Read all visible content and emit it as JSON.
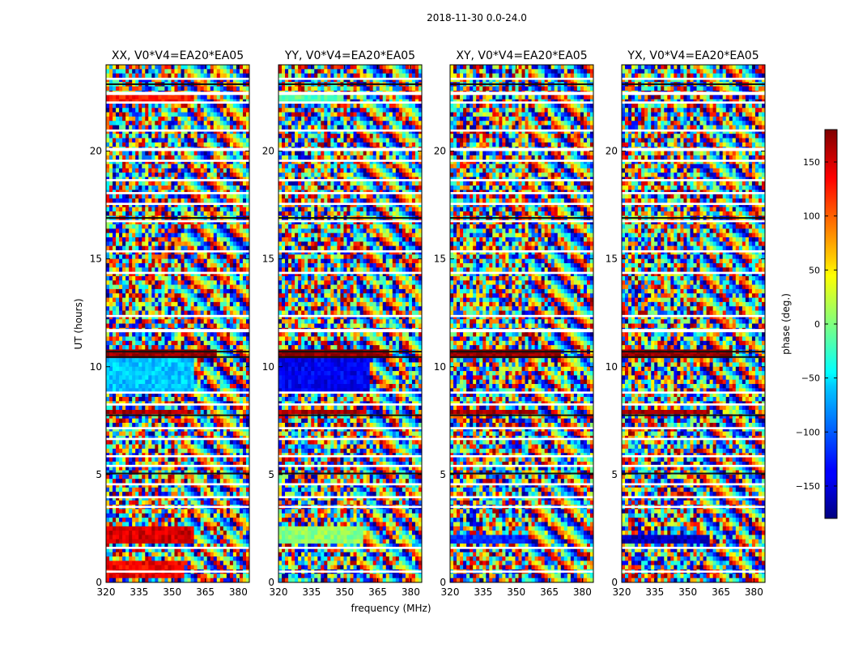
{
  "suptitle": "2018-11-30 0.0-24.0",
  "chart_data": {
    "type": "heatmap",
    "description_axis": "dynamic phase spectra per polarization",
    "xlabel": "frequency (MHz)",
    "ylabel": "UT (hours)",
    "xlim": [
      320,
      385
    ],
    "ylim": [
      0,
      24
    ],
    "x_ticks": [
      320,
      335,
      350,
      365,
      380
    ],
    "y_ticks": [
      0,
      5,
      10,
      15,
      20
    ],
    "colorbar": {
      "label": "phase (deg.)",
      "range": [
        -180,
        180
      ],
      "ticks": [
        -150,
        -100,
        -50,
        0,
        50,
        100,
        150
      ],
      "colormap": "jet"
    },
    "panels": [
      {
        "title": "XX, V0*V4=EA20*EA05",
        "smooth_regions": [
          {
            "t": [
              8.8,
              10.4
            ],
            "f": [
              320,
              360
            ],
            "phase": -65
          },
          {
            "t": [
              10.4,
              10.8
            ],
            "f": [
              320,
              370
            ],
            "phase": 175
          },
          {
            "t": [
              7.75,
              7.95
            ],
            "f": [
              320,
              360
            ],
            "phase": 165
          },
          {
            "t": [
              1.7,
              2.6
            ],
            "f": [
              320,
              360
            ],
            "phase": 150
          },
          {
            "t": [
              22.3,
              22.6
            ],
            "f": [
              320,
              360
            ],
            "phase": 130
          },
          {
            "t": [
              0.2,
              0.9
            ],
            "f": [
              320,
              355
            ],
            "phase": 140
          }
        ]
      },
      {
        "title": "YY, V0*V4=EA20*EA05",
        "smooth_regions": [
          {
            "t": [
              8.8,
              10.4
            ],
            "f": [
              320,
              362
            ],
            "phase": -140
          },
          {
            "t": [
              10.4,
              10.8
            ],
            "f": [
              320,
              370
            ],
            "phase": 175
          },
          {
            "t": [
              1.7,
              2.6
            ],
            "f": [
              320,
              358
            ],
            "phase": 5
          },
          {
            "t": [
              22.3,
              22.6
            ],
            "f": [
              320,
              350
            ],
            "phase": -15
          },
          {
            "t": [
              7.75,
              7.95
            ],
            "f": [
              320,
              360
            ],
            "phase": 165
          }
        ]
      },
      {
        "title": "XY, V0*V4=EA20*EA05",
        "smooth_regions": [
          {
            "t": [
              10.4,
              10.8
            ],
            "f": [
              320,
              370
            ],
            "phase": 175
          },
          {
            "t": [
              1.8,
              2.2
            ],
            "f": [
              320,
              355
            ],
            "phase": -120
          },
          {
            "t": [
              7.75,
              7.95
            ],
            "f": [
              320,
              360
            ],
            "phase": 165
          }
        ]
      },
      {
        "title": "YX, V0*V4=EA20*EA05",
        "smooth_regions": [
          {
            "t": [
              10.4,
              10.8
            ],
            "f": [
              320,
              370
            ],
            "phase": 175
          },
          {
            "t": [
              1.85,
              2.15
            ],
            "f": [
              320,
              360
            ],
            "phase": -160
          },
          {
            "t": [
              7.75,
              7.95
            ],
            "f": [
              320,
              360
            ],
            "phase": 165
          }
        ]
      }
    ],
    "blank_bands_hours": [
      [
        0.45,
        0.55
      ],
      [
        1.55,
        1.65
      ],
      [
        3.45,
        3.55
      ],
      [
        3.9,
        4.0
      ],
      [
        4.5,
        4.6
      ],
      [
        5.35,
        5.45
      ],
      [
        5.8,
        5.9
      ],
      [
        6.6,
        6.7
      ],
      [
        7.1,
        7.2
      ],
      [
        8.2,
        8.3
      ],
      [
        8.75,
        8.85
      ],
      [
        11.6,
        11.75
      ],
      [
        12.3,
        12.4
      ],
      [
        14.3,
        14.4
      ],
      [
        15.3,
        15.4
      ],
      [
        16.7,
        16.8
      ],
      [
        17.5,
        17.6
      ],
      [
        18.0,
        18.1
      ],
      [
        18.6,
        18.7
      ],
      [
        19.5,
        19.6
      ],
      [
        20.0,
        20.15
      ],
      [
        20.9,
        21.0
      ],
      [
        22.2,
        22.3
      ],
      [
        22.6,
        22.75
      ],
      [
        23.3,
        23.4
      ]
    ],
    "dark_lines_hours": [
      5.05,
      7.75,
      10.45,
      10.7,
      16.9,
      23.1
    ]
  }
}
